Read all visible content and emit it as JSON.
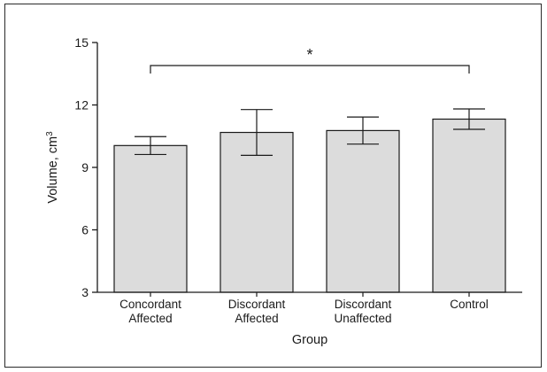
{
  "chart_data": {
    "type": "bar",
    "xlabel": "Group",
    "ylabel": "Volume, cm",
    "ylabel_superscript": "3",
    "ylim": [
      3,
      15
    ],
    "yticks": [
      3,
      6,
      9,
      12,
      15
    ],
    "categories": [
      [
        "Concordant",
        "Affected"
      ],
      [
        "Discordant",
        "Affected"
      ],
      [
        "Discordant",
        "Unaffected"
      ],
      [
        "Control"
      ]
    ],
    "values": [
      10.05,
      10.68,
      10.77,
      11.32
    ],
    "error_low": [
      9.62,
      9.58,
      10.12,
      10.83
    ],
    "error_high": [
      10.48,
      11.78,
      11.42,
      11.81
    ],
    "bar_color": "#dcdcdc",
    "significance": {
      "from_category": 0,
      "to_category": 3,
      "label": "*"
    }
  }
}
